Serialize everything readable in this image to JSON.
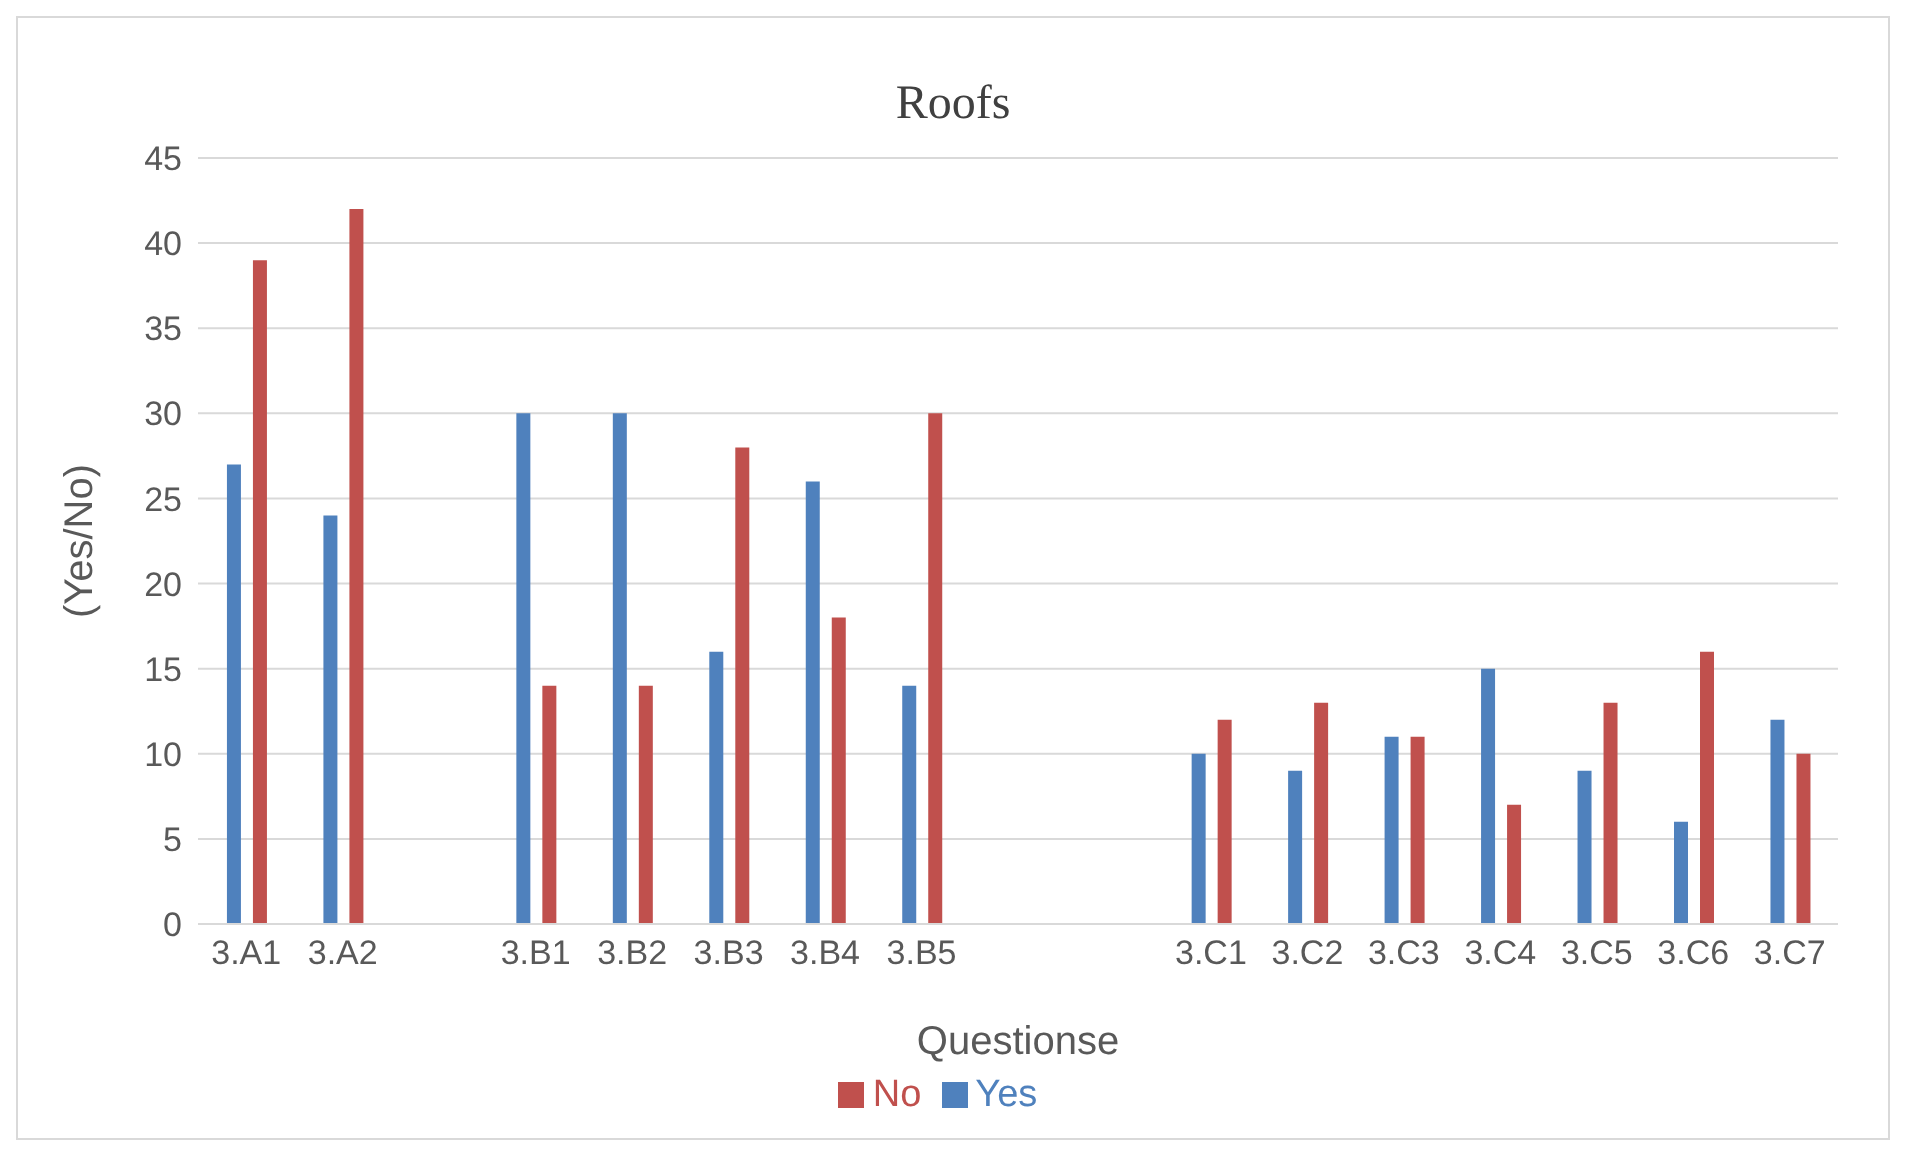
{
  "chart_data": {
    "type": "bar",
    "title": "Roofs",
    "xlabel": "Questionse",
    "ylabel": "(Yes/No)",
    "categories": [
      "3.A1",
      "3.A2",
      null,
      "3.B1",
      "3.B2",
      "3.B3",
      "3.B4",
      "3.B5",
      null,
      null,
      "3.C1",
      "3.C2",
      "3.C3",
      "3.C4",
      "3.C5",
      "3.C6",
      "3.C7"
    ],
    "series": [
      {
        "name": "Yes",
        "color": "#4f81bd",
        "values": [
          27,
          24,
          null,
          30,
          30,
          16,
          26,
          14,
          null,
          null,
          10,
          9,
          11,
          15,
          9,
          6,
          12
        ]
      },
      {
        "name": "No",
        "color": "#c0504d",
        "values": [
          39,
          42,
          null,
          14,
          14,
          28,
          18,
          30,
          null,
          null,
          12,
          13,
          11,
          7,
          13,
          16,
          10
        ]
      }
    ],
    "ylim": [
      0,
      45
    ],
    "yticks": [
      0,
      5,
      10,
      15,
      20,
      25,
      30,
      35,
      40,
      45
    ],
    "grid": "y",
    "legend": "bottom"
  }
}
